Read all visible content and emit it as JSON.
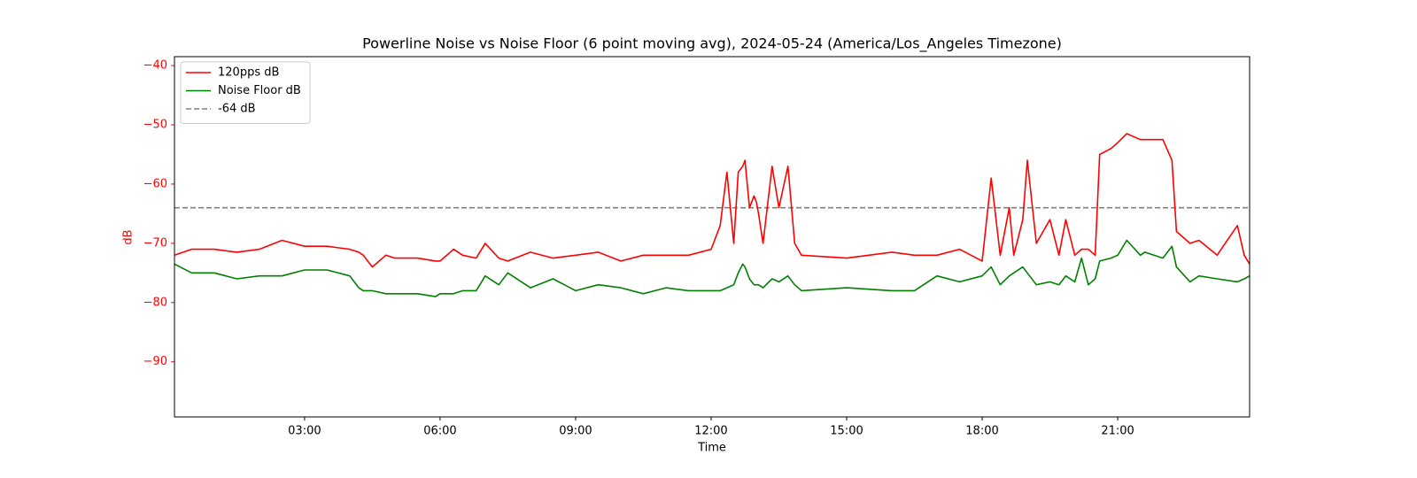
{
  "chart_data": {
    "type": "line",
    "title": "Powerline Noise vs Noise Floor (6 point moving avg), 2024-05-24 (America/Los_Angeles Timezone)",
    "xlabel": "Time",
    "ylabel": "dB",
    "ylabel_color": "#ff0000",
    "x": [
      0.12,
      0.5,
      1,
      1.5,
      2,
      2.5,
      3,
      3.5,
      4,
      4.2,
      4.3,
      4.5,
      4.8,
      5,
      5.5,
      5.9,
      6,
      6.3,
      6.5,
      6.8,
      7,
      7.3,
      7.5,
      8,
      8.5,
      9,
      9.5,
      10,
      10.5,
      11,
      11.5,
      12,
      12.2,
      12.35,
      12.5,
      12.6,
      12.7,
      12.75,
      12.85,
      12.95,
      13,
      13.05,
      13.15,
      13.35,
      13.5,
      13.7,
      13.85,
      14,
      15,
      16,
      16.5,
      17,
      17.5,
      18,
      18.2,
      18.4,
      18.6,
      18.7,
      18.9,
      19,
      19.2,
      19.5,
      19.7,
      19.85,
      20.05,
      20.2,
      20.35,
      20.5,
      20.6,
      20.85,
      21,
      21.2,
      21.5,
      21.6,
      22,
      22.2,
      22.3,
      22.6,
      22.8,
      23.2,
      23.65,
      23.8,
      23.92
    ],
    "series": [
      {
        "name": "120pps dB",
        "color": "#ff0000",
        "values": [
          -72,
          -71,
          -71,
          -71.5,
          -71,
          -69.5,
          -70.5,
          -70.5,
          -71,
          -71.5,
          -72,
          -74,
          -72,
          -72.5,
          -72.5,
          -73,
          -73,
          -71,
          -72,
          -72.5,
          -70,
          -72.5,
          -73,
          -71.5,
          -72.5,
          -72,
          -71.5,
          -73,
          -72,
          -72,
          -72,
          -71,
          -67,
          -58,
          -70,
          -58,
          -57,
          -56,
          -64,
          -62,
          -63,
          -65,
          -70,
          -57,
          -64,
          -57,
          -70,
          -72,
          -72.5,
          -71.5,
          -72,
          -72,
          -71,
          -73,
          -59,
          -72,
          -64,
          -72,
          -66,
          -56,
          -70,
          -66,
          -72,
          -66,
          -72,
          -71,
          -71,
          -72,
          -55,
          -54,
          -53,
          -51.5,
          -52.5,
          -52.5,
          -52.5,
          -56,
          -68,
          -70,
          -69.5,
          -72,
          -67,
          -72,
          -73.5
        ]
      },
      {
        "name": "Noise Floor dB",
        "color": "#008000",
        "values": [
          -73.5,
          -75,
          -75,
          -76,
          -75.5,
          -75.5,
          -74.5,
          -74.5,
          -75.5,
          -77.5,
          -78,
          -78,
          -78.5,
          -78.5,
          -78.5,
          -79,
          -78.5,
          -78.5,
          -78,
          -78,
          -75.5,
          -77,
          -75,
          -77.5,
          -76,
          -78,
          -77,
          -77.5,
          -78.5,
          -77.5,
          -78,
          -78,
          -78,
          -77.5,
          -77,
          -75,
          -73.5,
          -74,
          -76,
          -77,
          -77,
          -77,
          -77.5,
          -76,
          -76.5,
          -75.5,
          -77,
          -78,
          -77.5,
          -78,
          -78,
          -75.5,
          -76.5,
          -75.5,
          -74,
          -77,
          -75.5,
          -75,
          -74,
          -75,
          -77,
          -76.5,
          -77,
          -75.5,
          -76.5,
          -72.5,
          -77,
          -76,
          -73,
          -72.5,
          -72,
          -69.5,
          -72,
          -71.5,
          -72.5,
          -70.5,
          -74,
          -76.5,
          -75.5,
          -76,
          -76.5,
          -76,
          -75.5
        ]
      }
    ],
    "hlines": [
      {
        "name": "-64 dB",
        "value": -64,
        "color": "#808080",
        "dashed": true
      }
    ],
    "xlim": [
      0.12,
      23.92
    ],
    "xticks": [
      {
        "value": 3,
        "label": "03:00"
      },
      {
        "value": 6,
        "label": "06:00"
      },
      {
        "value": 9,
        "label": "09:00"
      },
      {
        "value": 12,
        "label": "12:00"
      },
      {
        "value": 15,
        "label": "15:00"
      },
      {
        "value": 18,
        "label": "18:00"
      },
      {
        "value": 21,
        "label": "21:00"
      }
    ],
    "ylim": [
      -99.3,
      -38.5
    ],
    "yticks": [
      {
        "value": -40,
        "label": "−40"
      },
      {
        "value": -50,
        "label": "−50"
      },
      {
        "value": -60,
        "label": "−60"
      },
      {
        "value": -70,
        "label": "−70"
      },
      {
        "value": -80,
        "label": "−80"
      },
      {
        "value": -90,
        "label": "−90"
      }
    ],
    "ytick_color": "#ff0000",
    "legend": "upper left",
    "grid": false
  }
}
